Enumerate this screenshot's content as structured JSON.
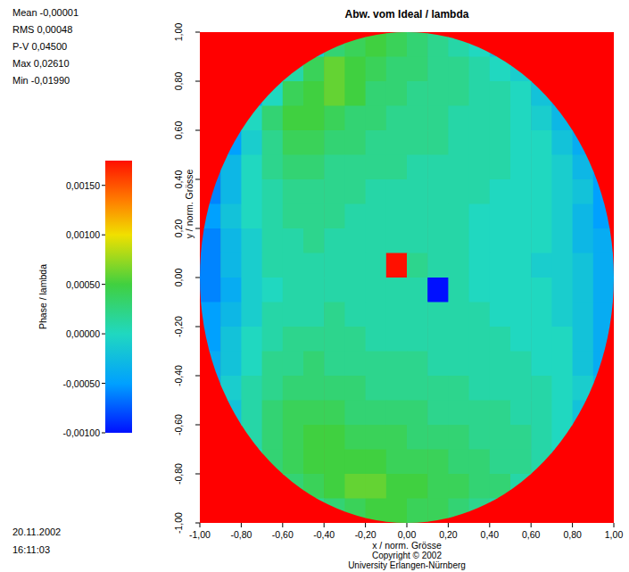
{
  "chart_data": {
    "type": "heatmap",
    "title": "Abw. vom Ideal / lambda",
    "stats": [
      "Mean -0,00001",
      "RMS 0,00048",
      "P-V 0,04500",
      "Max 0,02610",
      "Min -0,01990"
    ],
    "date": "20.11.2002",
    "time": "16:11:03",
    "x_label": "x / norm. Grösse",
    "y_label": "y / norm. Grösse",
    "footer": [
      "Copyright © 2002",
      "University Erlangen-Nürnberg"
    ],
    "xlim": [
      -1,
      1
    ],
    "ylim": [
      -1,
      1
    ],
    "xticks": [
      {
        "value": -1,
        "label": "-1,00"
      },
      {
        "value": -0.8,
        "label": "-0,80"
      },
      {
        "value": -0.6,
        "label": "-0,60"
      },
      {
        "value": -0.4,
        "label": "-0,40"
      },
      {
        "value": -0.2,
        "label": "-0,20"
      },
      {
        "value": 0,
        "label": "0,00"
      },
      {
        "value": 0.2,
        "label": "0,20"
      },
      {
        "value": 0.4,
        "label": "0,40"
      },
      {
        "value": 0.6,
        "label": "0,60"
      },
      {
        "value": 0.8,
        "label": "0,80"
      },
      {
        "value": 1,
        "label": "1,00"
      }
    ],
    "yticks": [
      {
        "value": -1,
        "label": "-1,00"
      },
      {
        "value": -0.8,
        "label": "-0,80"
      },
      {
        "value": -0.6,
        "label": "-0,60"
      },
      {
        "value": -0.4,
        "label": "-0,40"
      },
      {
        "value": -0.2,
        "label": "-0,20"
      },
      {
        "value": 0,
        "label": "0,00"
      },
      {
        "value": 0.2,
        "label": "0,20"
      },
      {
        "value": 0.4,
        "label": "0,40"
      },
      {
        "value": 0.6,
        "label": "0,60"
      },
      {
        "value": 0.8,
        "label": "0,80"
      },
      {
        "value": 1,
        "label": "1,00"
      }
    ],
    "colorbar": {
      "label": "Phase / lambda",
      "range": [
        -0.001,
        0.00175
      ],
      "ticks": [
        {
          "value": 0.0015,
          "label": "0,00150"
        },
        {
          "value": 0.001,
          "label": "0,00100"
        },
        {
          "value": 0.0005,
          "label": "0,00050"
        },
        {
          "value": 0,
          "label": "0,00000"
        },
        {
          "value": -0.0005,
          "label": "-0,00050"
        },
        {
          "value": -0.001,
          "label": "-0,00100"
        }
      ]
    },
    "x": [
      -0.95,
      -0.85,
      -0.75,
      -0.65,
      -0.55,
      -0.45,
      -0.35,
      -0.25,
      -0.15,
      -0.05,
      0.05,
      0.15,
      0.25,
      0.35,
      0.45,
      0.55,
      0.65,
      0.75,
      0.85,
      0.95
    ],
    "y": [
      0.95,
      0.85,
      0.75,
      0.65,
      0.55,
      0.45,
      0.35,
      0.25,
      0.15,
      0.05,
      -0.05,
      -0.15,
      -0.25,
      -0.35,
      -0.45,
      -0.55,
      -0.65,
      -0.75,
      -0.85,
      -0.95
    ],
    "cells": [
      [
        null,
        null,
        null,
        null,
        null,
        -0.0001,
        0.0003,
        0.0004,
        0.0005,
        0.0004,
        0.0003,
        0.0002,
        0.0001,
        0,
        -0.0002,
        null,
        null,
        null,
        null,
        null
      ],
      [
        null,
        null,
        null,
        -0.0003,
        0.0001,
        0.0004,
        0.0006,
        0.0005,
        0.0004,
        0.0003,
        0.0003,
        0.0002,
        0.0002,
        0.0001,
        0,
        -0.0001,
        -0.0003,
        null,
        null,
        null
      ],
      [
        null,
        null,
        -0.0004,
        0,
        0.0004,
        0.0005,
        0.0006,
        0.0005,
        0.0003,
        0.0003,
        0.0002,
        0.0002,
        0.0002,
        0.0001,
        0.0001,
        0,
        -0.0002,
        -0.0004,
        null,
        null
      ],
      [
        null,
        -0.0004,
        0,
        0.0003,
        0.0005,
        0.0005,
        0.0004,
        0.0003,
        0.0003,
        0.0002,
        0.0002,
        0.0002,
        0.0001,
        0.0001,
        0.0001,
        0,
        -0.0001,
        -0.0003,
        -0.0005,
        null
      ],
      [
        null,
        -0.0005,
        -0.0001,
        0.0002,
        0.0004,
        0.0004,
        0.0003,
        0.0003,
        0.0002,
        0.0002,
        0.0002,
        0.0002,
        0.0001,
        0.0001,
        0.0001,
        0,
        0,
        -0.0002,
        -0.0004,
        null
      ],
      [
        -0.0006,
        -0.0003,
        0,
        0.0002,
        0.0003,
        0.0003,
        0.0002,
        0.0002,
        0.0002,
        0.0002,
        0.0001,
        0.0001,
        0.0001,
        0.0001,
        0.0001,
        0,
        0,
        -0.0001,
        -0.0003,
        -0.0005
      ],
      [
        -0.0006,
        -0.0003,
        0,
        0.0001,
        0.0002,
        0.0002,
        0.0002,
        0.0002,
        0.0001,
        0.0001,
        0.0001,
        0.0001,
        0.0001,
        0.0001,
        0,
        0,
        0,
        -0.0001,
        -0.0002,
        -0.0005
      ],
      [
        -0.0005,
        -0.0002,
        0,
        0.0001,
        0.0002,
        0.0002,
        0.0002,
        0.0001,
        0.0001,
        0.0001,
        0.0001,
        0.0001,
        0.0001,
        0,
        0,
        0,
        0,
        -0.0001,
        -0.0003,
        -0.0005
      ],
      [
        -0.0006,
        -0.0003,
        -0.0001,
        0.0001,
        0.0001,
        0.0002,
        0.0001,
        0.0001,
        0.0001,
        0.0001,
        0.0001,
        0.0001,
        0.0001,
        0,
        0,
        0,
        0,
        -0.0001,
        -0.0003,
        -0.0004
      ],
      [
        -0.0006,
        -0.0003,
        -0.0001,
        0.0001,
        0.0001,
        0.0001,
        0.0001,
        0.0001,
        0.0001,
        0.0035,
        0.0002,
        0.0001,
        0.0001,
        0,
        0,
        0,
        -0.0001,
        -0.0001,
        -0.0002,
        -0.0004
      ],
      [
        -0.0006,
        -0.0004,
        -0.0001,
        0,
        0.0001,
        0.0001,
        0.0001,
        0.0001,
        0.0001,
        0.0001,
        0.0001,
        -0.003,
        0.0001,
        0,
        0,
        0,
        0,
        -0.0001,
        -0.0002,
        -0.0004
      ],
      [
        -0.0005,
        -0.0003,
        -0.0001,
        0.0001,
        0.0001,
        0.0001,
        0.0002,
        0.0001,
        0.0001,
        0.0001,
        0.0001,
        0.0001,
        0.0001,
        0.0001,
        0,
        0,
        0,
        -0.0001,
        -0.0002,
        -0.0004
      ],
      [
        -0.0005,
        -0.0002,
        0,
        0.0001,
        0.0002,
        0.0002,
        0.0002,
        0.0002,
        0.0001,
        0.0001,
        0.0001,
        0.0001,
        0.0001,
        0.0001,
        0.0001,
        0,
        0,
        0,
        -0.0002,
        -0.0004
      ],
      [
        -0.0004,
        -0.0002,
        0,
        0.0002,
        0.0002,
        0.0003,
        0.0002,
        0.0002,
        0.0002,
        0.0002,
        0.0002,
        0.0001,
        0.0001,
        0.0001,
        0.0001,
        0.0001,
        0,
        0,
        -0.0002,
        -0.0004
      ],
      [
        -0.0004,
        -0.0001,
        0.0001,
        0.0002,
        0.0003,
        0.0003,
        0.0003,
        0.0003,
        0.0002,
        0.0002,
        0.0002,
        0.0002,
        0.0002,
        0.0001,
        0.0001,
        0.0001,
        0.0001,
        0,
        -0.0001,
        -0.0003
      ],
      [
        null,
        -0.0002,
        0.0001,
        0.0003,
        0.0004,
        0.0004,
        0.0004,
        0.0003,
        0.0003,
        0.0003,
        0.0003,
        0.0002,
        0.0002,
        0.0002,
        0.0002,
        0.0001,
        0.0001,
        0,
        -0.0002,
        null
      ],
      [
        null,
        -0.0002,
        0.0001,
        0.0003,
        0.0004,
        0.0005,
        0.0005,
        0.0004,
        0.0004,
        0.0004,
        0.0003,
        0.0003,
        0.0003,
        0.0002,
        0.0002,
        0.0002,
        0.0001,
        0,
        -0.0002,
        null
      ],
      [
        null,
        null,
        0,
        0.0003,
        0.0004,
        0.0005,
        0.0005,
        0.0005,
        0.0005,
        0.0004,
        0.0004,
        0.0004,
        0.0003,
        0.0003,
        0.0002,
        0.0002,
        0.0001,
        -0.0001,
        null,
        null
      ],
      [
        null,
        null,
        null,
        0.0001,
        0.0003,
        0.0004,
        0.0005,
        0.0006,
        0.0006,
        0.0005,
        0.0005,
        0.0004,
        0.0004,
        0.0003,
        0.0003,
        0.0001,
        0,
        null,
        null,
        null
      ],
      [
        null,
        null,
        null,
        null,
        null,
        0.0002,
        0.0003,
        0.0004,
        0.0005,
        0.0005,
        0.0004,
        0.0004,
        0.0003,
        0.0002,
        0.0001,
        null,
        null,
        null,
        null,
        null
      ]
    ]
  }
}
